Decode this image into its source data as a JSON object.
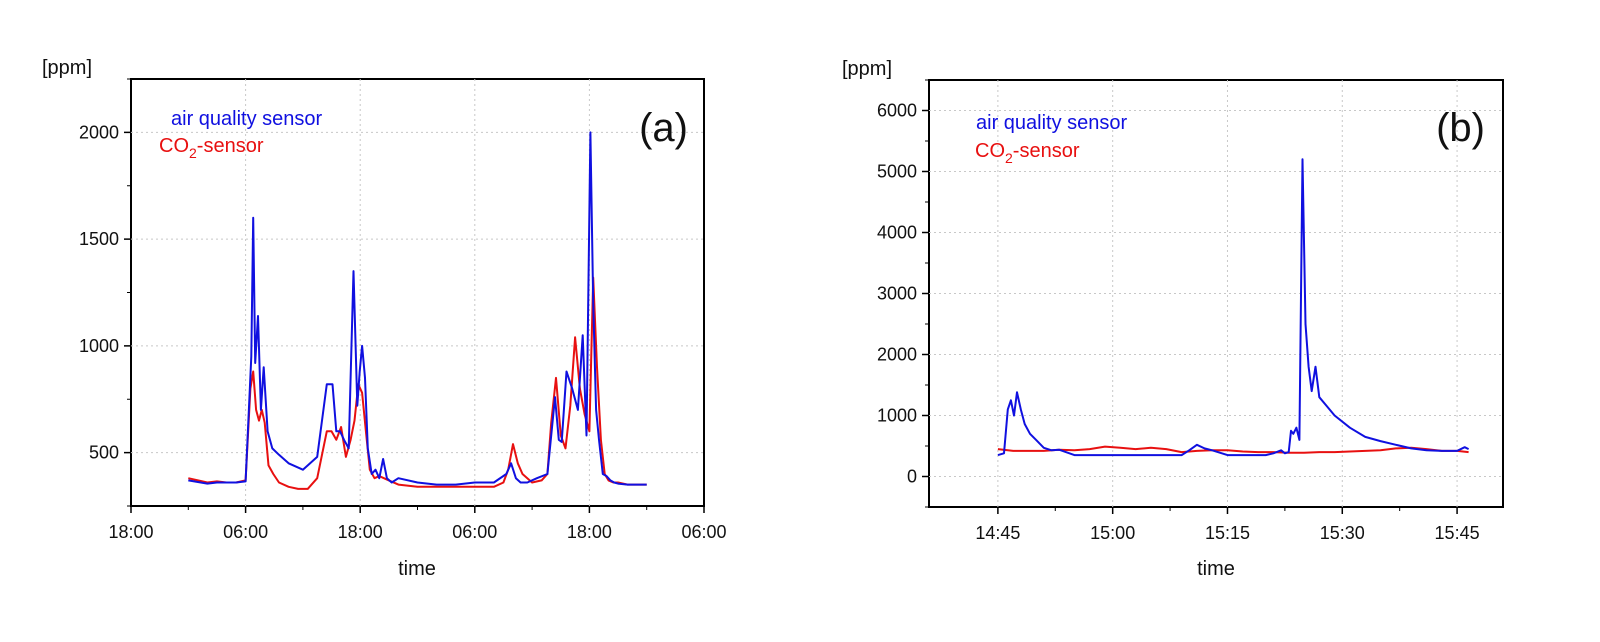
{
  "chart_data": [
    {
      "type": "line",
      "panel_label": "(a)",
      "xlabel": "time",
      "ylabel": "[ppm]",
      "x_unit": "hours",
      "xlim": [
        0,
        60
      ],
      "ylim": [
        250,
        2250
      ],
      "x_ticks": [
        {
          "value": 0,
          "label": "18:00"
        },
        {
          "value": 12,
          "label": "06:00"
        },
        {
          "value": 24,
          "label": "18:00"
        },
        {
          "value": 36,
          "label": "06:00"
        },
        {
          "value": 48,
          "label": "18:00"
        },
        {
          "value": 60,
          "label": "06:00"
        }
      ],
      "y_ticks": [
        {
          "value": 500,
          "label": "500"
        },
        {
          "value": 1000,
          "label": "1000"
        },
        {
          "value": 1500,
          "label": "1500"
        },
        {
          "value": 2000,
          "label": "2000"
        }
      ],
      "grid": true,
      "legend_position": "top-left",
      "series": [
        {
          "name": "air quality sensor",
          "color": "#1010e0",
          "x": [
            6,
            8,
            9,
            10,
            11,
            12,
            12.6,
            12.8,
            13.0,
            13.3,
            13.6,
            13.9,
            14.3,
            14.8,
            15.5,
            16.5,
            18,
            19.5,
            20.5,
            21.1,
            21.5,
            21.9,
            22.3,
            22.8,
            23.3,
            23.7,
            23.95,
            24.2,
            24.5,
            24.8,
            25.2,
            25.6,
            26.0,
            26.4,
            26.8,
            27.3,
            28,
            30,
            32,
            34,
            36,
            38,
            39.3,
            39.8,
            40.3,
            40.8,
            41.5,
            42.5,
            43.6,
            44.4,
            44.8,
            45.1,
            45.6,
            46.2,
            46.8,
            47.3,
            47.7,
            48.1,
            48.4,
            48.7,
            49,
            49.4,
            49.8,
            50.2,
            50.6,
            51,
            52,
            53,
            54
          ],
          "y": [
            370,
            355,
            360,
            360,
            360,
            365,
            950,
            1600,
            920,
            1140,
            700,
            900,
            600,
            520,
            490,
            450,
            420,
            480,
            820,
            820,
            600,
            600,
            560,
            520,
            1350,
            720,
            880,
            1000,
            850,
            520,
            400,
            420,
            380,
            470,
            380,
            360,
            380,
            360,
            350,
            350,
            360,
            360,
            400,
            450,
            380,
            360,
            360,
            380,
            400,
            760,
            560,
            550,
            880,
            800,
            700,
            1050,
            580,
            2000,
            1200,
            700,
            560,
            400,
            390,
            370,
            360,
            355,
            350,
            350,
            350
          ]
        },
        {
          "name": "CO₂-sensor",
          "color": "#e81010",
          "x": [
            6,
            8,
            9,
            10,
            11,
            12,
            12.5,
            12.8,
            13.1,
            13.4,
            13.7,
            14.0,
            14.4,
            14.9,
            15.5,
            16.5,
            17.5,
            18.5,
            19.5,
            20.5,
            21,
            21.5,
            22,
            22.5,
            23,
            23.4,
            23.8,
            24.2,
            24.6,
            25,
            25.5,
            26,
            27,
            28,
            30,
            32,
            34,
            36,
            38,
            39,
            39.5,
            40,
            40.5,
            41,
            41.5,
            42,
            43,
            43.6,
            44,
            44.5,
            45,
            45.5,
            46,
            46.5,
            47,
            47.5,
            48,
            48.4,
            48.8,
            49.2,
            49.6,
            50,
            50.5,
            51,
            52,
            53,
            54
          ],
          "y": [
            380,
            360,
            365,
            360,
            360,
            370,
            800,
            880,
            700,
            650,
            700,
            640,
            440,
            400,
            360,
            340,
            330,
            330,
            380,
            600,
            600,
            560,
            620,
            480,
            560,
            650,
            820,
            780,
            600,
            420,
            380,
            390,
            370,
            350,
            340,
            340,
            340,
            340,
            340,
            360,
            420,
            540,
            450,
            400,
            380,
            360,
            370,
            400,
            640,
            850,
            580,
            520,
            720,
            1040,
            800,
            680,
            600,
            1320,
            900,
            560,
            400,
            370,
            360,
            360,
            350,
            350,
            350
          ]
        }
      ]
    },
    {
      "type": "line",
      "panel_label": "(b)",
      "xlabel": "time",
      "ylabel": "[ppm]",
      "x_unit": "minutes",
      "xlim": [
        -9,
        66
      ],
      "ylim": [
        -500,
        6500
      ],
      "x_ticks": [
        {
          "value": 0,
          "label": "14:45"
        },
        {
          "value": 15,
          "label": "15:00"
        },
        {
          "value": 30,
          "label": "15:15"
        },
        {
          "value": 45,
          "label": "15:30"
        },
        {
          "value": 60,
          "label": "15:45"
        }
      ],
      "y_ticks": [
        {
          "value": 0,
          "label": "0"
        },
        {
          "value": 1000,
          "label": "1000"
        },
        {
          "value": 2000,
          "label": "2000"
        },
        {
          "value": 3000,
          "label": "3000"
        },
        {
          "value": 4000,
          "label": "4000"
        },
        {
          "value": 5000,
          "label": "5000"
        },
        {
          "value": 6000,
          "label": "6000"
        }
      ],
      "grid": true,
      "legend_position": "top-left",
      "series": [
        {
          "name": "air quality sensor",
          "color": "#1010e0",
          "x": [
            0,
            0.8,
            1.3,
            1.7,
            2.1,
            2.5,
            3,
            3.5,
            4.2,
            5,
            6,
            7,
            8,
            10,
            12,
            15,
            18,
            21,
            24,
            25,
            26,
            27,
            28,
            30,
            32,
            34,
            35,
            36,
            37,
            37.5,
            38,
            38.3,
            38.6,
            39,
            39.4,
            39.8,
            40.2,
            40.6,
            41,
            41.5,
            42,
            43,
            44,
            46,
            48,
            50,
            52,
            54,
            56,
            58,
            60,
            61,
            61.5
          ],
          "y": [
            350,
            380,
            1100,
            1250,
            1000,
            1380,
            1100,
            860,
            700,
            600,
            470,
            430,
            440,
            350,
            350,
            350,
            350,
            350,
            350,
            430,
            520,
            460,
            430,
            350,
            350,
            350,
            350,
            380,
            430,
            380,
            400,
            750,
            700,
            800,
            600,
            5200,
            2500,
            1800,
            1400,
            1800,
            1300,
            1150,
            1000,
            800,
            650,
            580,
            520,
            460,
            430,
            420,
            420,
            480,
            450
          ]
        },
        {
          "name": "CO₂-sensor",
          "color": "#e81010",
          "x": [
            0,
            2,
            4,
            6,
            8,
            10,
            12,
            14,
            16,
            18,
            20,
            22,
            24,
            26,
            28,
            30,
            32,
            34,
            36,
            38,
            40,
            42,
            44,
            46,
            48,
            50,
            52,
            54,
            56,
            58,
            60,
            61.5
          ],
          "y": [
            450,
            420,
            420,
            420,
            440,
            430,
            450,
            490,
            470,
            450,
            470,
            450,
            400,
            420,
            430,
            430,
            410,
            400,
            400,
            390,
            390,
            400,
            400,
            410,
            420,
            430,
            460,
            470,
            450,
            420,
            420,
            400
          ]
        }
      ]
    }
  ]
}
